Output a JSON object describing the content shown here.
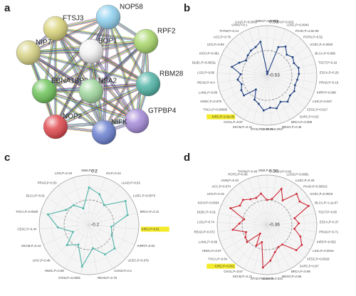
{
  "panels": [
    "a",
    "b",
    "c",
    "d"
  ],
  "network": {
    "nodes": [
      "FTSJ3",
      "NOP58",
      "RPF2",
      "BOP1",
      "NIP7",
      "RBM28",
      "EBNA1BP2",
      "NSA2",
      "GTPBP4",
      "NOP2",
      "NIFK"
    ]
  },
  "chart_data": [
    {
      "type": "radar",
      "color": "#1f3f7f",
      "rlim": [
        -0.53,
        0.53
      ],
      "rticks": [
        -0.53,
        0.53
      ],
      "highlight_index": 20,
      "categories": [
        "GBM,P=0.00084",
        "OV,P=0.023",
        "LUSC,P=0.0040",
        "PAAD,P=4.6e-06",
        "PCPG,P=0.52",
        "UCEC,P=0.0020",
        "BLCA,P=0.096",
        "TGCT,P=0.19",
        "ESCA,P=0.20",
        "PRAD,P=0.19",
        "KIRP,P=0.088",
        "LIHC,P=0.027",
        "CESC,P=0.017",
        "SARC,P=0.02",
        "BRCA,P=0.089",
        "MESO,P=0.46",
        "COAD,P=0.0027",
        "STAD,P=1.7e-06",
        "SKCM,P=0.41",
        "CHOL,P=0.87",
        "KIRC,P=2.9e-05",
        "THCA,P=0.00095",
        "HNSC,P=0.079",
        "LAML,P=0.89",
        "READ,P=0.4",
        "LGG,P=0.86",
        "DLBC,P=0.00011",
        "KICH,P=0.081",
        "UCS,P=0.95",
        "ACC,P=0.79",
        "THYM,P=0.14",
        "UVM,P=0.1",
        "LUAD,P=0.0065"
      ],
      "values": [
        -0.45,
        -0.5,
        0.12,
        0.2,
        0.08,
        0.14,
        0.1,
        0.16,
        0.15,
        0.12,
        0.1,
        0.14,
        0.12,
        0.18,
        0.1,
        0.2,
        0.16,
        0.22,
        0.1,
        0.05,
        -0.15,
        0.12,
        0.1,
        0.04,
        0.1,
        0.03,
        0.24,
        0.12,
        0.02,
        0.06,
        0.1,
        0.12,
        0.2
      ]
    },
    {
      "type": "radar",
      "color": "#4db3a8",
      "rlim": [
        -0.2,
        0.2
      ],
      "rticks": [
        -0.2,
        0.2
      ],
      "highlight_index": 5,
      "categories": [
        "GBM,P=0.3",
        "OV,P=0.44",
        "LUAD,P=0.93",
        "LUSC,P=0.0073",
        "BRCA,P=0.11",
        "KIRC,P=0.81",
        "KIRP,P=0.93",
        "UCEC,P=0.076",
        "COAD,P=0.1",
        "READ,P=0.79",
        "STAD,P=0.0025",
        "HNSC,P=0.89",
        "LIHC,P=0.48",
        "SKCM,P=0.24",
        "CESC,P=0.44",
        "THCA,P=0.0020",
        "BLCA,P=0.61",
        "PRAD,P=0.53",
        "LGG,P=0.19"
      ],
      "values": [
        0.1,
        0.06,
        0.0,
        0.15,
        0.12,
        -0.02,
        0.0,
        0.08,
        0.07,
        -0.01,
        0.14,
        -0.02,
        0.04,
        -0.06,
        0.05,
        0.14,
        0.02,
        0.0,
        -0.06
      ]
    },
    {
      "type": "radar",
      "color": "#cc2936",
      "rlim": [
        -0.36,
        0.36
      ],
      "rticks": [
        -0.36,
        0.36
      ],
      "highlight_index": 20,
      "categories": [
        "GBM,P=0.71",
        "OV,P=0.91",
        "LUAD,P=0.0081",
        "LUSC,P=0.33",
        "PAAD,P=0.00013",
        "UCEC,P=0.0019",
        "BLCA,P=1.1e-07",
        "TGCT,P=0.65",
        "ESCA,P=0.37",
        "PRAD,P=0.71",
        "KIRP,P=0.052",
        "LIHC,P=0.0016",
        "CESC,P=0.0018",
        "SARC,P=0.97",
        "BRCA,P=0.98",
        "MESO,P=0.66",
        "COAD,P=0.034",
        "STAD,P=6.8e-05",
        "SKCM,P=0.21",
        "CHOL,P=0.87",
        "KIRC,P=0.001",
        "THCA,P=0.84",
        "HNSC,P=0.97",
        "LAML,P=0.89",
        "READ,P=0.072",
        "LGG,P=0.74",
        "DLBC,P=0.91",
        "KICH,P=0.0034",
        "UCS,P=0.15",
        "ACC,P=0.074",
        "UVM,P=0.43",
        "PCPG,P=0.49",
        "THYM,P=0.48"
      ],
      "values": [
        0.0,
        0.02,
        0.2,
        0.06,
        0.26,
        0.22,
        0.3,
        0.05,
        0.1,
        0.04,
        0.15,
        0.22,
        0.2,
        0.0,
        0.0,
        0.05,
        0.16,
        0.26,
        -0.1,
        -0.02,
        -0.2,
        0.02,
        0.0,
        -0.04,
        0.14,
        0.04,
        -0.02,
        0.22,
        0.12,
        0.14,
        0.08,
        0.06,
        0.1
      ]
    }
  ]
}
